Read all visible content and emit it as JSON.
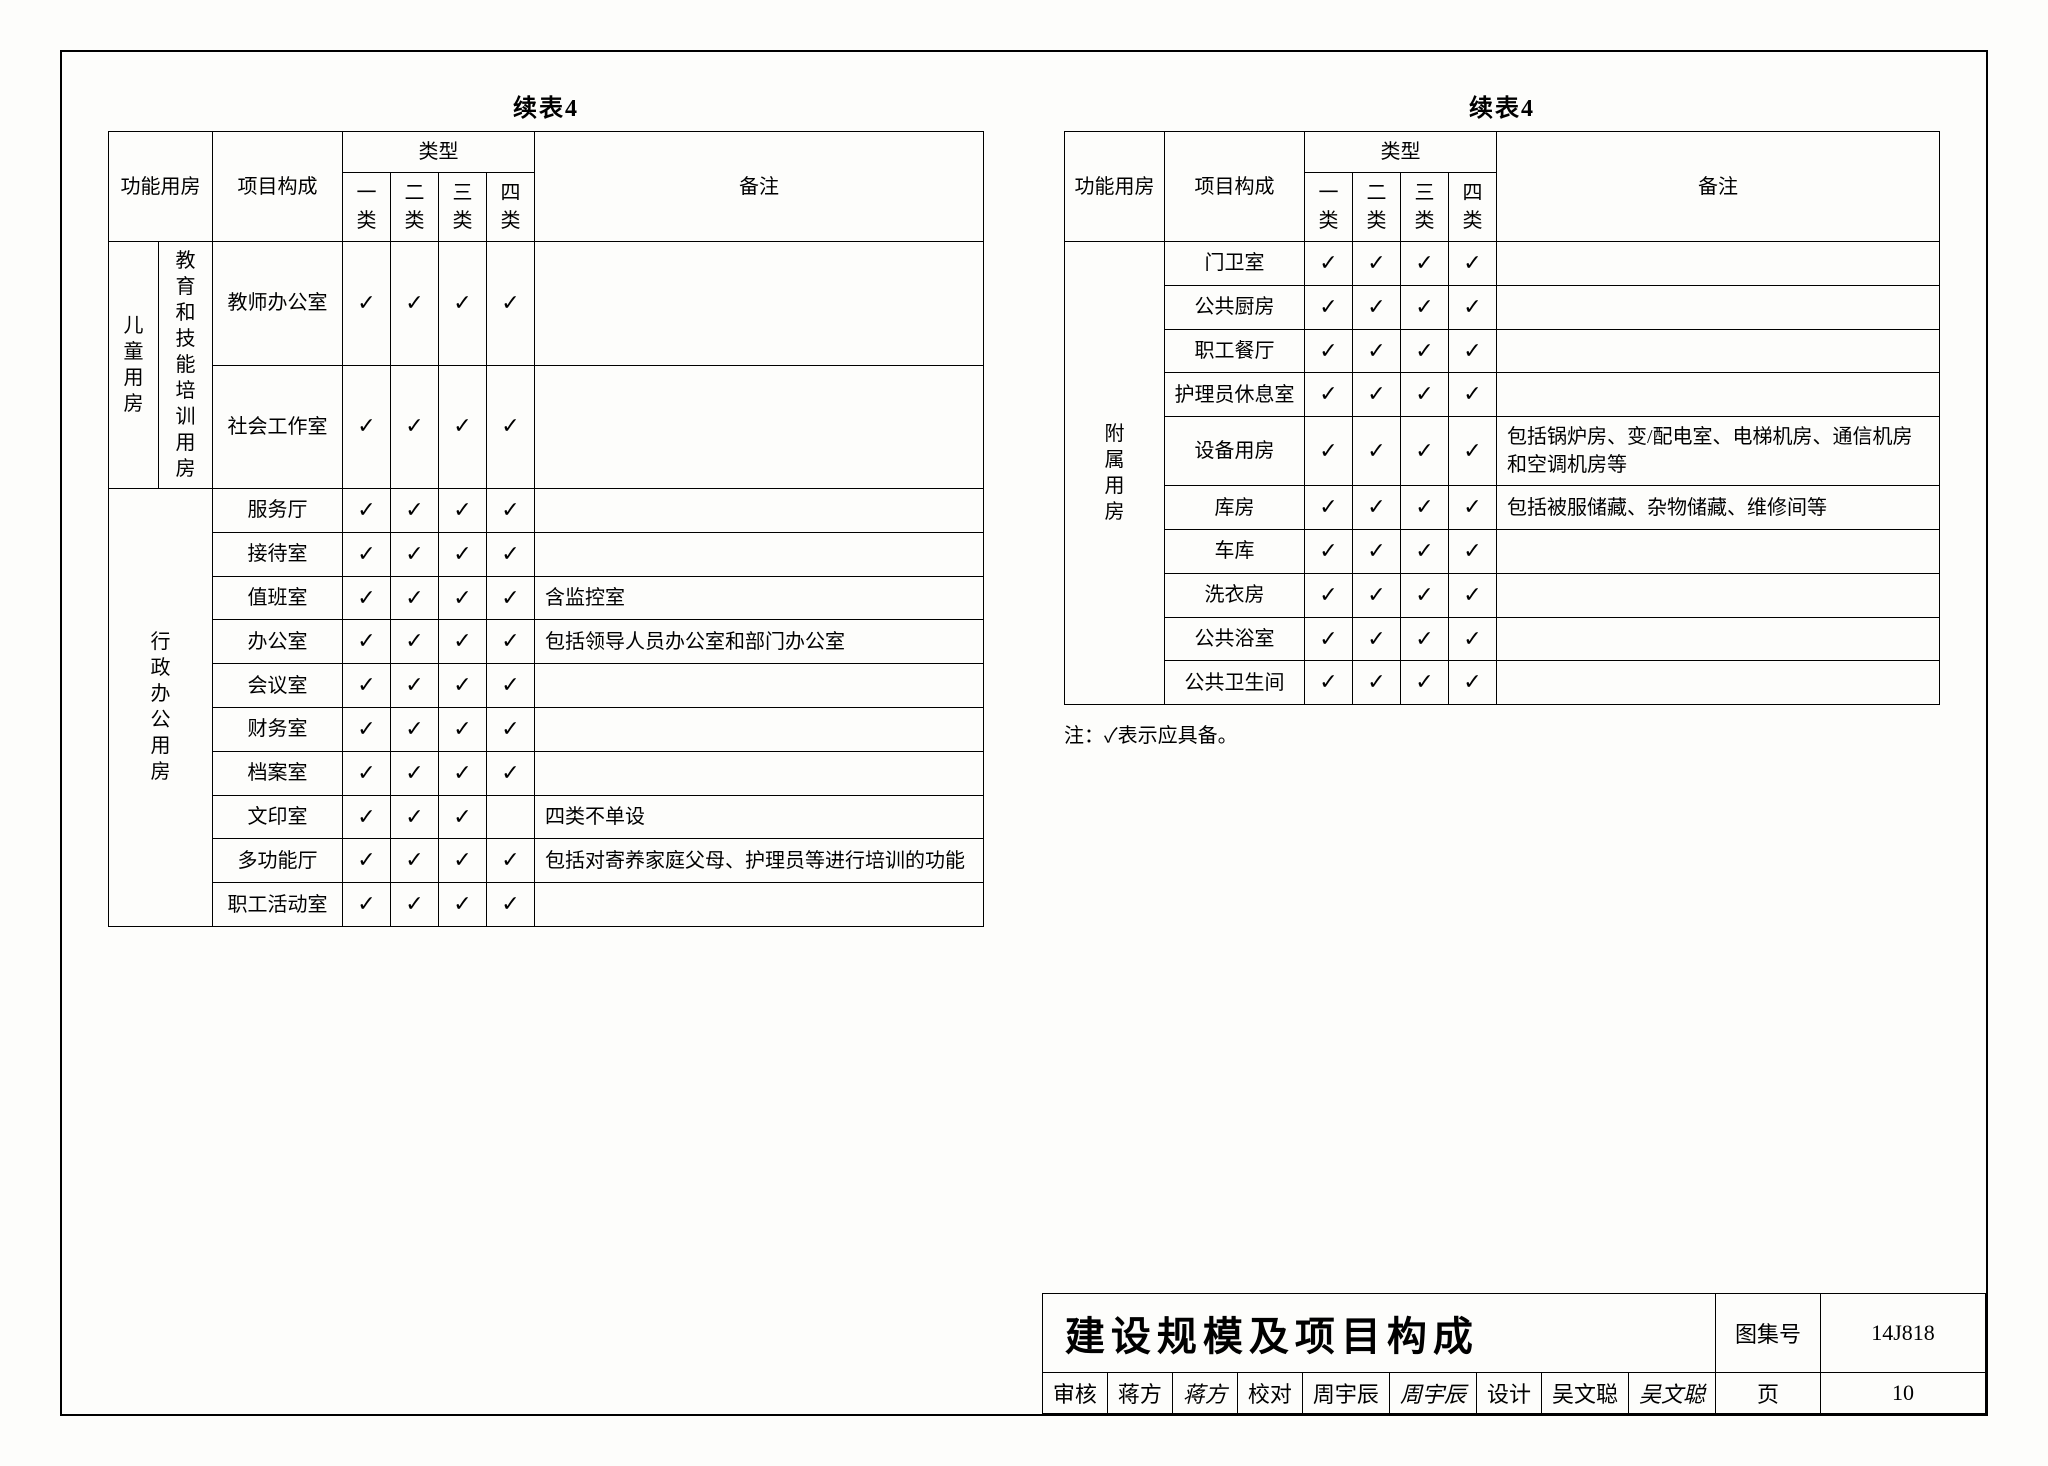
{
  "caption_left": "续表4",
  "caption_right": "续表4",
  "check_mark": "✓",
  "headers": {
    "func": "功能用房",
    "item": "项目构成",
    "type": "类型",
    "t1": "一类",
    "t2": "二类",
    "t3": "三类",
    "t4": "四类",
    "remark": "备注"
  },
  "left": {
    "group1": {
      "name1": "儿童用房",
      "name2": "教育和技能培训用房"
    },
    "group2": {
      "name": "行政办公用房"
    },
    "rows1": [
      {
        "item": "教师办公室",
        "c": [
          true,
          true,
          true,
          true
        ],
        "remark": ""
      },
      {
        "item": "社会工作室",
        "c": [
          true,
          true,
          true,
          true
        ],
        "remark": ""
      }
    ],
    "rows2": [
      {
        "item": "服务厅",
        "c": [
          true,
          true,
          true,
          true
        ],
        "remark": ""
      },
      {
        "item": "接待室",
        "c": [
          true,
          true,
          true,
          true
        ],
        "remark": ""
      },
      {
        "item": "值班室",
        "c": [
          true,
          true,
          true,
          true
        ],
        "remark": "含监控室"
      },
      {
        "item": "办公室",
        "c": [
          true,
          true,
          true,
          true
        ],
        "remark": "包括领导人员办公室和部门办公室"
      },
      {
        "item": "会议室",
        "c": [
          true,
          true,
          true,
          true
        ],
        "remark": ""
      },
      {
        "item": "财务室",
        "c": [
          true,
          true,
          true,
          true
        ],
        "remark": ""
      },
      {
        "item": "档案室",
        "c": [
          true,
          true,
          true,
          true
        ],
        "remark": ""
      },
      {
        "item": "文印室",
        "c": [
          true,
          true,
          true,
          false
        ],
        "remark": "四类不单设"
      },
      {
        "item": "多功能厅",
        "c": [
          true,
          true,
          true,
          true
        ],
        "remark": "包括对寄养家庭父母、护理员等进行培训的功能"
      },
      {
        "item": "职工活动室",
        "c": [
          true,
          true,
          true,
          true
        ],
        "remark": ""
      }
    ]
  },
  "right": {
    "group": {
      "name": "附属用房"
    },
    "rows": [
      {
        "item": "门卫室",
        "c": [
          true,
          true,
          true,
          true
        ],
        "remark": ""
      },
      {
        "item": "公共厨房",
        "c": [
          true,
          true,
          true,
          true
        ],
        "remark": ""
      },
      {
        "item": "职工餐厅",
        "c": [
          true,
          true,
          true,
          true
        ],
        "remark": ""
      },
      {
        "item": "护理员休息室",
        "c": [
          true,
          true,
          true,
          true
        ],
        "remark": ""
      },
      {
        "item": "设备用房",
        "c": [
          true,
          true,
          true,
          true
        ],
        "remark": "包括锅炉房、变/配电室、电梯机房、通信机房和空调机房等"
      },
      {
        "item": "库房",
        "c": [
          true,
          true,
          true,
          true
        ],
        "remark": "包括被服储藏、杂物储藏、维修间等"
      },
      {
        "item": "车库",
        "c": [
          true,
          true,
          true,
          true
        ],
        "remark": ""
      },
      {
        "item": "洗衣房",
        "c": [
          true,
          true,
          true,
          true
        ],
        "remark": ""
      },
      {
        "item": "公共浴室",
        "c": [
          true,
          true,
          true,
          true
        ],
        "remark": ""
      },
      {
        "item": "公共卫生间",
        "c": [
          true,
          true,
          true,
          true
        ],
        "remark": ""
      }
    ]
  },
  "footnote": "注：✓表示应具备。",
  "titleblock": {
    "title": "建设规模及项目构成",
    "atlas_label": "图集号",
    "atlas_no": "14J818",
    "page_label": "页",
    "page_no": "10",
    "review_label": "审核",
    "review_name": "蒋方",
    "review_sig": "蒋方",
    "check_label": "校对",
    "check_name": "周宇辰",
    "check_sig": "周宇辰",
    "design_label": "设计",
    "design_name": "吴文聪",
    "design_sig": "吴文聪"
  },
  "col_widths": {
    "func_a": 50,
    "func_b": 54,
    "item": 120,
    "type": 48,
    "remark": 200
  }
}
